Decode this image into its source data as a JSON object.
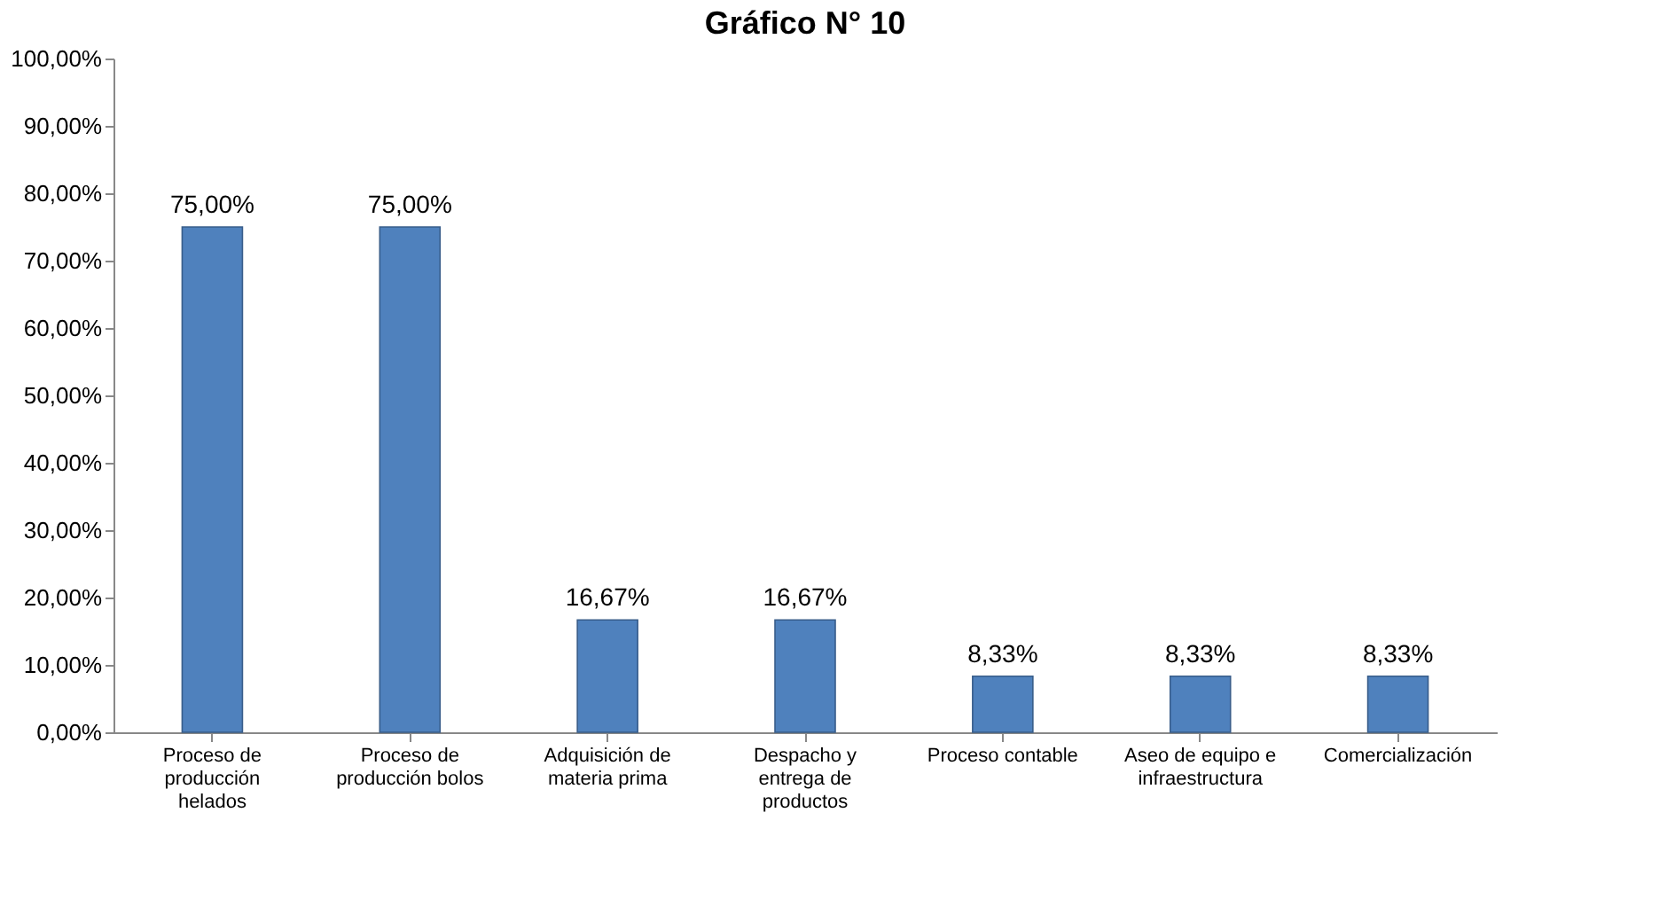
{
  "chart_data": {
    "type": "bar",
    "title": "Gráfico N° 10",
    "categories": [
      "Proceso de producción helados",
      "Proceso de producción bolos",
      "Adquisición de materia prima",
      "Despacho y entrega de productos",
      "Proceso contable",
      "Aseo de equipo e infraestructura",
      "Comercialización"
    ],
    "values": [
      75.0,
      75.0,
      16.67,
      16.67,
      8.33,
      8.33,
      8.33
    ],
    "value_labels": [
      "75,00%",
      "75,00%",
      "16,67%",
      "16,67%",
      "8,33%",
      "8,33%",
      "8,33%"
    ],
    "color": "#4f81bd",
    "ylim": [
      0,
      100
    ],
    "yticks": [
      {
        "value": 0,
        "label": "0,00%"
      },
      {
        "value": 10,
        "label": "10,00%"
      },
      {
        "value": 20,
        "label": "20,00%"
      },
      {
        "value": 30,
        "label": "30,00%"
      },
      {
        "value": 40,
        "label": "40,00%"
      },
      {
        "value": 50,
        "label": "50,00%"
      },
      {
        "value": 60,
        "label": "60,00%"
      },
      {
        "value": 70,
        "label": "70,00%"
      },
      {
        "value": 80,
        "label": "80,00%"
      },
      {
        "value": 90,
        "label": "90,00%"
      },
      {
        "value": 100,
        "label": "100,00%"
      }
    ],
    "grid": false
  }
}
